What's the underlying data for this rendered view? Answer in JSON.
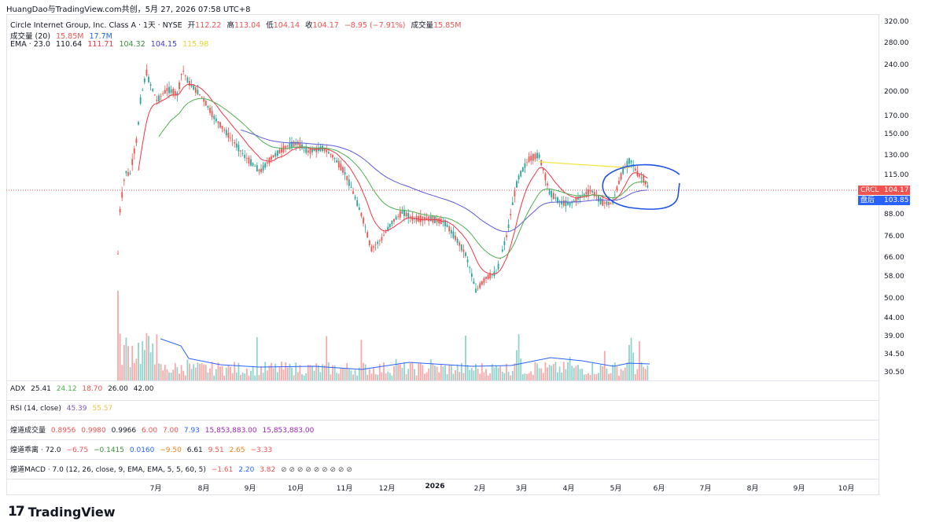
{
  "header": "HuangDao与TradingView.com共创，5月 27, 2026 07:58 UTC+8",
  "symbol": {
    "title": "Circle Internet Group, Inc. Class A · 1天 · NYSE",
    "open_label": "开",
    "open": "112.22",
    "high_label": "高",
    "high": "113.04",
    "low_label": "低",
    "low": "104.14",
    "close_label": "收",
    "close": "104.17",
    "change": "−8.95 (−7.91%)",
    "volume_label": "成交量",
    "volume": "15.85M"
  },
  "vol_legend": {
    "label": "成交量 (20)",
    "v1": "15.85M",
    "v2": "17.7M"
  },
  "ema_legend": {
    "label": "EMA · 23.0",
    "v1": "110.64",
    "v2": "111.71",
    "v3": "104.32",
    "v4": "104.15",
    "v5": "115.98"
  },
  "indicators": {
    "adx": {
      "label": "ADX",
      "v1": "25.41",
      "v2": "24.12",
      "v3": "18.70",
      "v4": "26.00",
      "v5": "42.00"
    },
    "rsi": {
      "label": "RSI (14, close)",
      "v1": "45.39",
      "v2": "55.57"
    },
    "hdvol": {
      "label": "煌道成交量",
      "v1": "0.8956",
      "v2": "0.9980",
      "v3": "0.9966",
      "v4": "6.00",
      "v5": "7.00",
      "v6": "7.93",
      "v7": "15,853,883.00",
      "v8": "15,853,883.00"
    },
    "hdbias": {
      "label": "煌道乖离 · 72.0",
      "v1": "−6.75",
      "v2": "−0.1415",
      "v3": "0.0160",
      "v4": "−9.50",
      "v5": "6.61",
      "v6": "9.51",
      "v7": "2.65",
      "v8": "−3.33"
    },
    "hdmacd": {
      "label": "煌道MACD · 7.0 (12, 26, close, 9, EMA, EMA, 5, 5, 60, 5)",
      "v1": "−1.61",
      "v2": "2.20",
      "v3": "3.82",
      "v4": "⊘ ⊘ ⊘ ⊘ ⊘ ⊘ ⊘ ⊘ ⊘"
    }
  },
  "price_tags": {
    "symbol": "CRCL",
    "last": "104.17",
    "after_label": "盘后",
    "after": "103.85"
  },
  "brand": "TradingView",
  "colors": {
    "up": "#26a69a",
    "down": "#ef5350",
    "ema1": "#f23645",
    "ema2": "#e57373",
    "ema3": "#4caf50",
    "ema4": "#5b5bd6",
    "ema5": "#f5e642",
    "annot": "#1e53e5"
  },
  "chart_data": {
    "type": "candlestick",
    "y_axis": {
      "scale": "log",
      "ticks": [
        "320.00",
        "280.00",
        "240.00",
        "200.00",
        "170.00",
        "150.00",
        "130.00",
        "115.00",
        "88.00",
        "76.00",
        "66.00",
        "58.00",
        "50.00",
        "44.00",
        "39.00",
        "34.50",
        "30.50"
      ]
    },
    "x_axis": {
      "ticks": [
        "7月",
        "8月",
        "9月",
        "10月",
        "11月",
        "12月",
        "2026",
        "2月",
        "3月",
        "4月",
        "5月",
        "6月",
        "7月",
        "8月",
        "9月",
        "10月"
      ]
    },
    "close_path": [
      {
        "x": "2025-06-05",
        "y": 68
      },
      {
        "x": "2025-06-06",
        "y": 88
      },
      {
        "x": "2025-06-10",
        "y": 118
      },
      {
        "x": "2025-06-13",
        "y": 115
      },
      {
        "x": "2025-06-18",
        "y": 150
      },
      {
        "x": "2025-06-20",
        "y": 190
      },
      {
        "x": "2025-06-24",
        "y": 230
      },
      {
        "x": "2025-06-26",
        "y": 215
      },
      {
        "x": "2025-07-01",
        "y": 190
      },
      {
        "x": "2025-07-08",
        "y": 205
      },
      {
        "x": "2025-07-15",
        "y": 198
      },
      {
        "x": "2025-07-18",
        "y": 235
      },
      {
        "x": "2025-07-22",
        "y": 215
      },
      {
        "x": "2025-07-31",
        "y": 195
      },
      {
        "x": "2025-08-08",
        "y": 170
      },
      {
        "x": "2025-08-18",
        "y": 150
      },
      {
        "x": "2025-08-29",
        "y": 130
      },
      {
        "x": "2025-09-08",
        "y": 118
      },
      {
        "x": "2025-09-16",
        "y": 130
      },
      {
        "x": "2025-09-26",
        "y": 140
      },
      {
        "x": "2025-10-03",
        "y": 143
      },
      {
        "x": "2025-10-10",
        "y": 135
      },
      {
        "x": "2025-10-20",
        "y": 138
      },
      {
        "x": "2025-10-27",
        "y": 130
      },
      {
        "x": "2025-11-03",
        "y": 118
      },
      {
        "x": "2025-11-10",
        "y": 100
      },
      {
        "x": "2025-11-17",
        "y": 82
      },
      {
        "x": "2025-11-21",
        "y": 70
      },
      {
        "x": "2025-11-28",
        "y": 75
      },
      {
        "x": "2025-12-05",
        "y": 84
      },
      {
        "x": "2025-12-12",
        "y": 90
      },
      {
        "x": "2025-12-19",
        "y": 86
      },
      {
        "x": "2025-12-31",
        "y": 86
      },
      {
        "x": "2026-01-09",
        "y": 84
      },
      {
        "x": "2026-01-16",
        "y": 76
      },
      {
        "x": "2026-01-23",
        "y": 68
      },
      {
        "x": "2026-01-30",
        "y": 53
      },
      {
        "x": "2026-02-06",
        "y": 58
      },
      {
        "x": "2026-02-13",
        "y": 60
      },
      {
        "x": "2026-02-20",
        "y": 78
      },
      {
        "x": "2026-02-27",
        "y": 112
      },
      {
        "x": "2026-03-06",
        "y": 128
      },
      {
        "x": "2026-03-13",
        "y": 132
      },
      {
        "x": "2026-03-20",
        "y": 103
      },
      {
        "x": "2026-03-27",
        "y": 96
      },
      {
        "x": "2026-04-03",
        "y": 95
      },
      {
        "x": "2026-04-10",
        "y": 100
      },
      {
        "x": "2026-04-17",
        "y": 104
      },
      {
        "x": "2026-04-24",
        "y": 96
      },
      {
        "x": "2026-05-01",
        "y": 95
      },
      {
        "x": "2026-05-08",
        "y": 118
      },
      {
        "x": "2026-05-13",
        "y": 128
      },
      {
        "x": "2026-05-18",
        "y": 116
      },
      {
        "x": "2026-05-22",
        "y": 112
      },
      {
        "x": "2026-05-26",
        "y": 104.17
      }
    ],
    "volume_avg": "17.7M",
    "last": 104.17,
    "after_hours": 103.85
  }
}
